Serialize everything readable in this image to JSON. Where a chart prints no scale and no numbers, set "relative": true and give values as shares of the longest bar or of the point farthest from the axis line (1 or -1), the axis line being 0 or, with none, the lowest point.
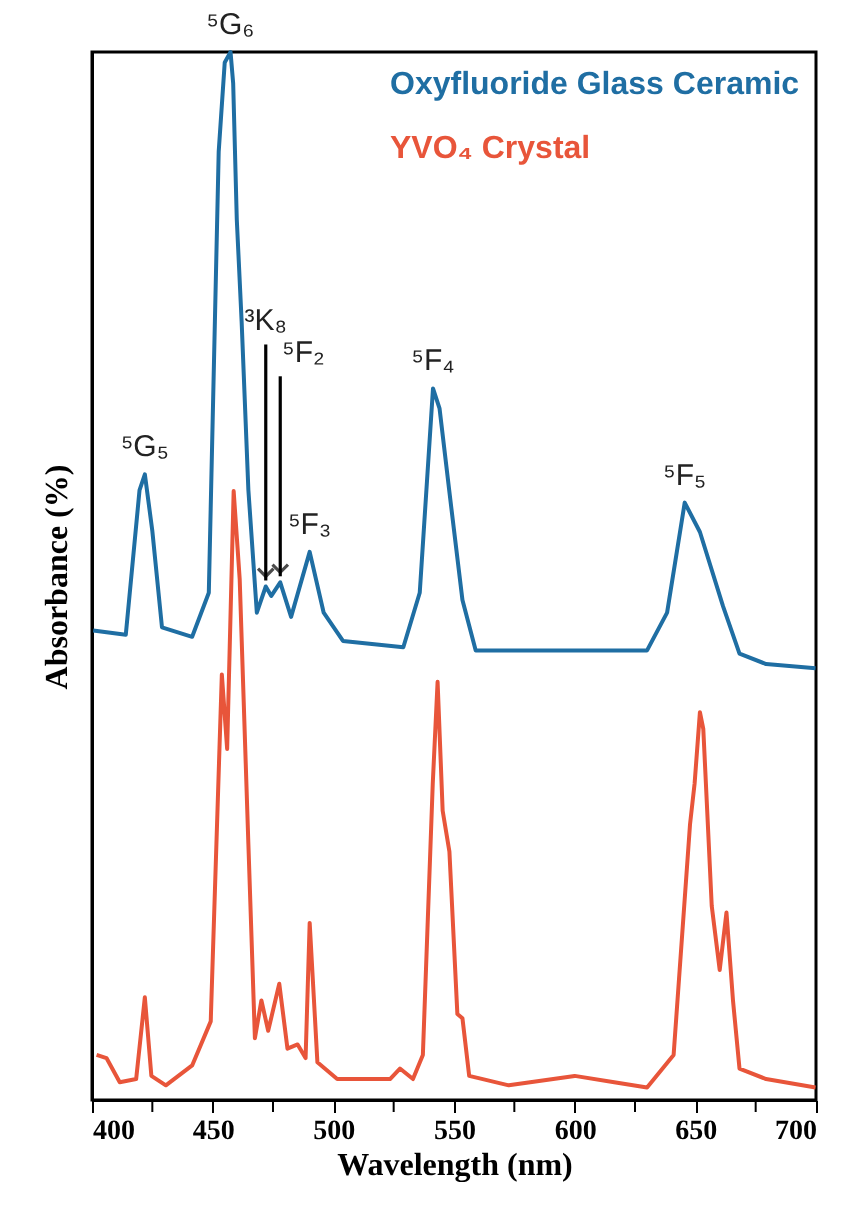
{
  "chart_data": {
    "type": "line",
    "relative": true,
    "xlabel": "Wavelength (nm)",
    "ylabel": "Absorbance (%)",
    "legend": "top right",
    "xlim": [
      400,
      700
    ],
    "xticks": [
      400,
      {
        "value": 425,
        "label": null
      },
      450,
      {
        "value": 475,
        "label": null
      },
      500,
      {
        "value": 525,
        "label": null
      },
      550,
      {
        "value": 575,
        "label": null
      },
      600,
      {
        "value": 625,
        "label": null
      },
      650,
      {
        "value": 675,
        "label": null
      },
      700
    ],
    "series": [
      {
        "name": "Oxyfluoride Glass Ceramic",
        "color": "#1f6ea3",
        "x": [
          400.5,
          414,
          419.7,
          421.9,
          425,
          429,
          441.5,
          448.4,
          452.5,
          455,
          457.4,
          458.5,
          460,
          462,
          464.8,
          468.3,
          472,
          474.3,
          478,
          482.5,
          490.2,
          496,
          504,
          529,
          535.8,
          541.3,
          544,
          548,
          553.5,
          559,
          630,
          638.3,
          645.6,
          651.9,
          661.5,
          668.3,
          679.3,
          699.8
        ],
        "values": [
          0.448,
          0.444,
          0.582,
          0.597,
          0.543,
          0.451,
          0.442,
          0.484,
          0.905,
          0.99,
          1,
          0.97,
          0.84,
          0.743,
          0.582,
          0.465,
          0.49,
          0.481,
          0.494,
          0.461,
          0.523,
          0.465,
          0.438,
          0.432,
          0.484,
          0.679,
          0.66,
          0.582,
          0.477,
          0.429,
          0.429,
          0.465,
          0.57,
          0.542,
          0.471,
          0.426,
          0.416,
          0.412
        ]
      },
      {
        "name": "YVO₄ Crystal",
        "color": "#e8553a",
        "x": [
          401.9,
          406,
          411.5,
          418.3,
          421.9,
          424.6,
          430.6,
          441.5,
          449.2,
          453.8,
          456,
          458.7,
          461.2,
          464.8,
          467.5,
          470.2,
          473,
          477.6,
          481,
          485.2,
          488.5,
          490.2,
          493.4,
          501.6,
          523.5,
          527.6,
          533,
          537.1,
          541.2,
          543.2,
          545.3,
          548.1,
          551.4,
          553.5,
          556.3,
          572.7,
          600,
          616.4,
          630,
          641,
          647.8,
          649.7,
          651.9,
          653.3,
          656.8,
          660.1,
          662.9,
          665.6,
          668.3,
          679.3,
          699.8
        ],
        "values": [
          0.043,
          0.04,
          0.017,
          0.02,
          0.098,
          0.023,
          0.014,
          0.033,
          0.075,
          0.406,
          0.335,
          0.581,
          0.497,
          0.244,
          0.059,
          0.095,
          0.066,
          0.111,
          0.049,
          0.053,
          0.04,
          0.169,
          0.036,
          0.02,
          0.02,
          0.03,
          0.02,
          0.043,
          0.302,
          0.399,
          0.276,
          0.237,
          0.082,
          0.078,
          0.023,
          0.014,
          0.023,
          0.017,
          0.012,
          0.043,
          0.263,
          0.302,
          0.37,
          0.354,
          0.185,
          0.124,
          0.179,
          0.095,
          0.03,
          0.02,
          0.012
        ]
      }
    ],
    "annotations": [
      {
        "text": "⁵G₅",
        "x": 421.9,
        "y": 0.597
      },
      {
        "text": "⁵G₆",
        "x": 457.4,
        "y": 1
      },
      {
        "text": "³K₈",
        "x": 472,
        "y": 0.49
      },
      {
        "text": "⁵F₂",
        "x": 478,
        "y": 0.494
      },
      {
        "text": "⁵F₃",
        "x": 490.2,
        "y": 0.523
      },
      {
        "text": "⁵F₄",
        "x": 541.3,
        "y": 0.679
      },
      {
        "text": "⁵F₅",
        "x": 645.6,
        "y": 0.57
      }
    ]
  }
}
